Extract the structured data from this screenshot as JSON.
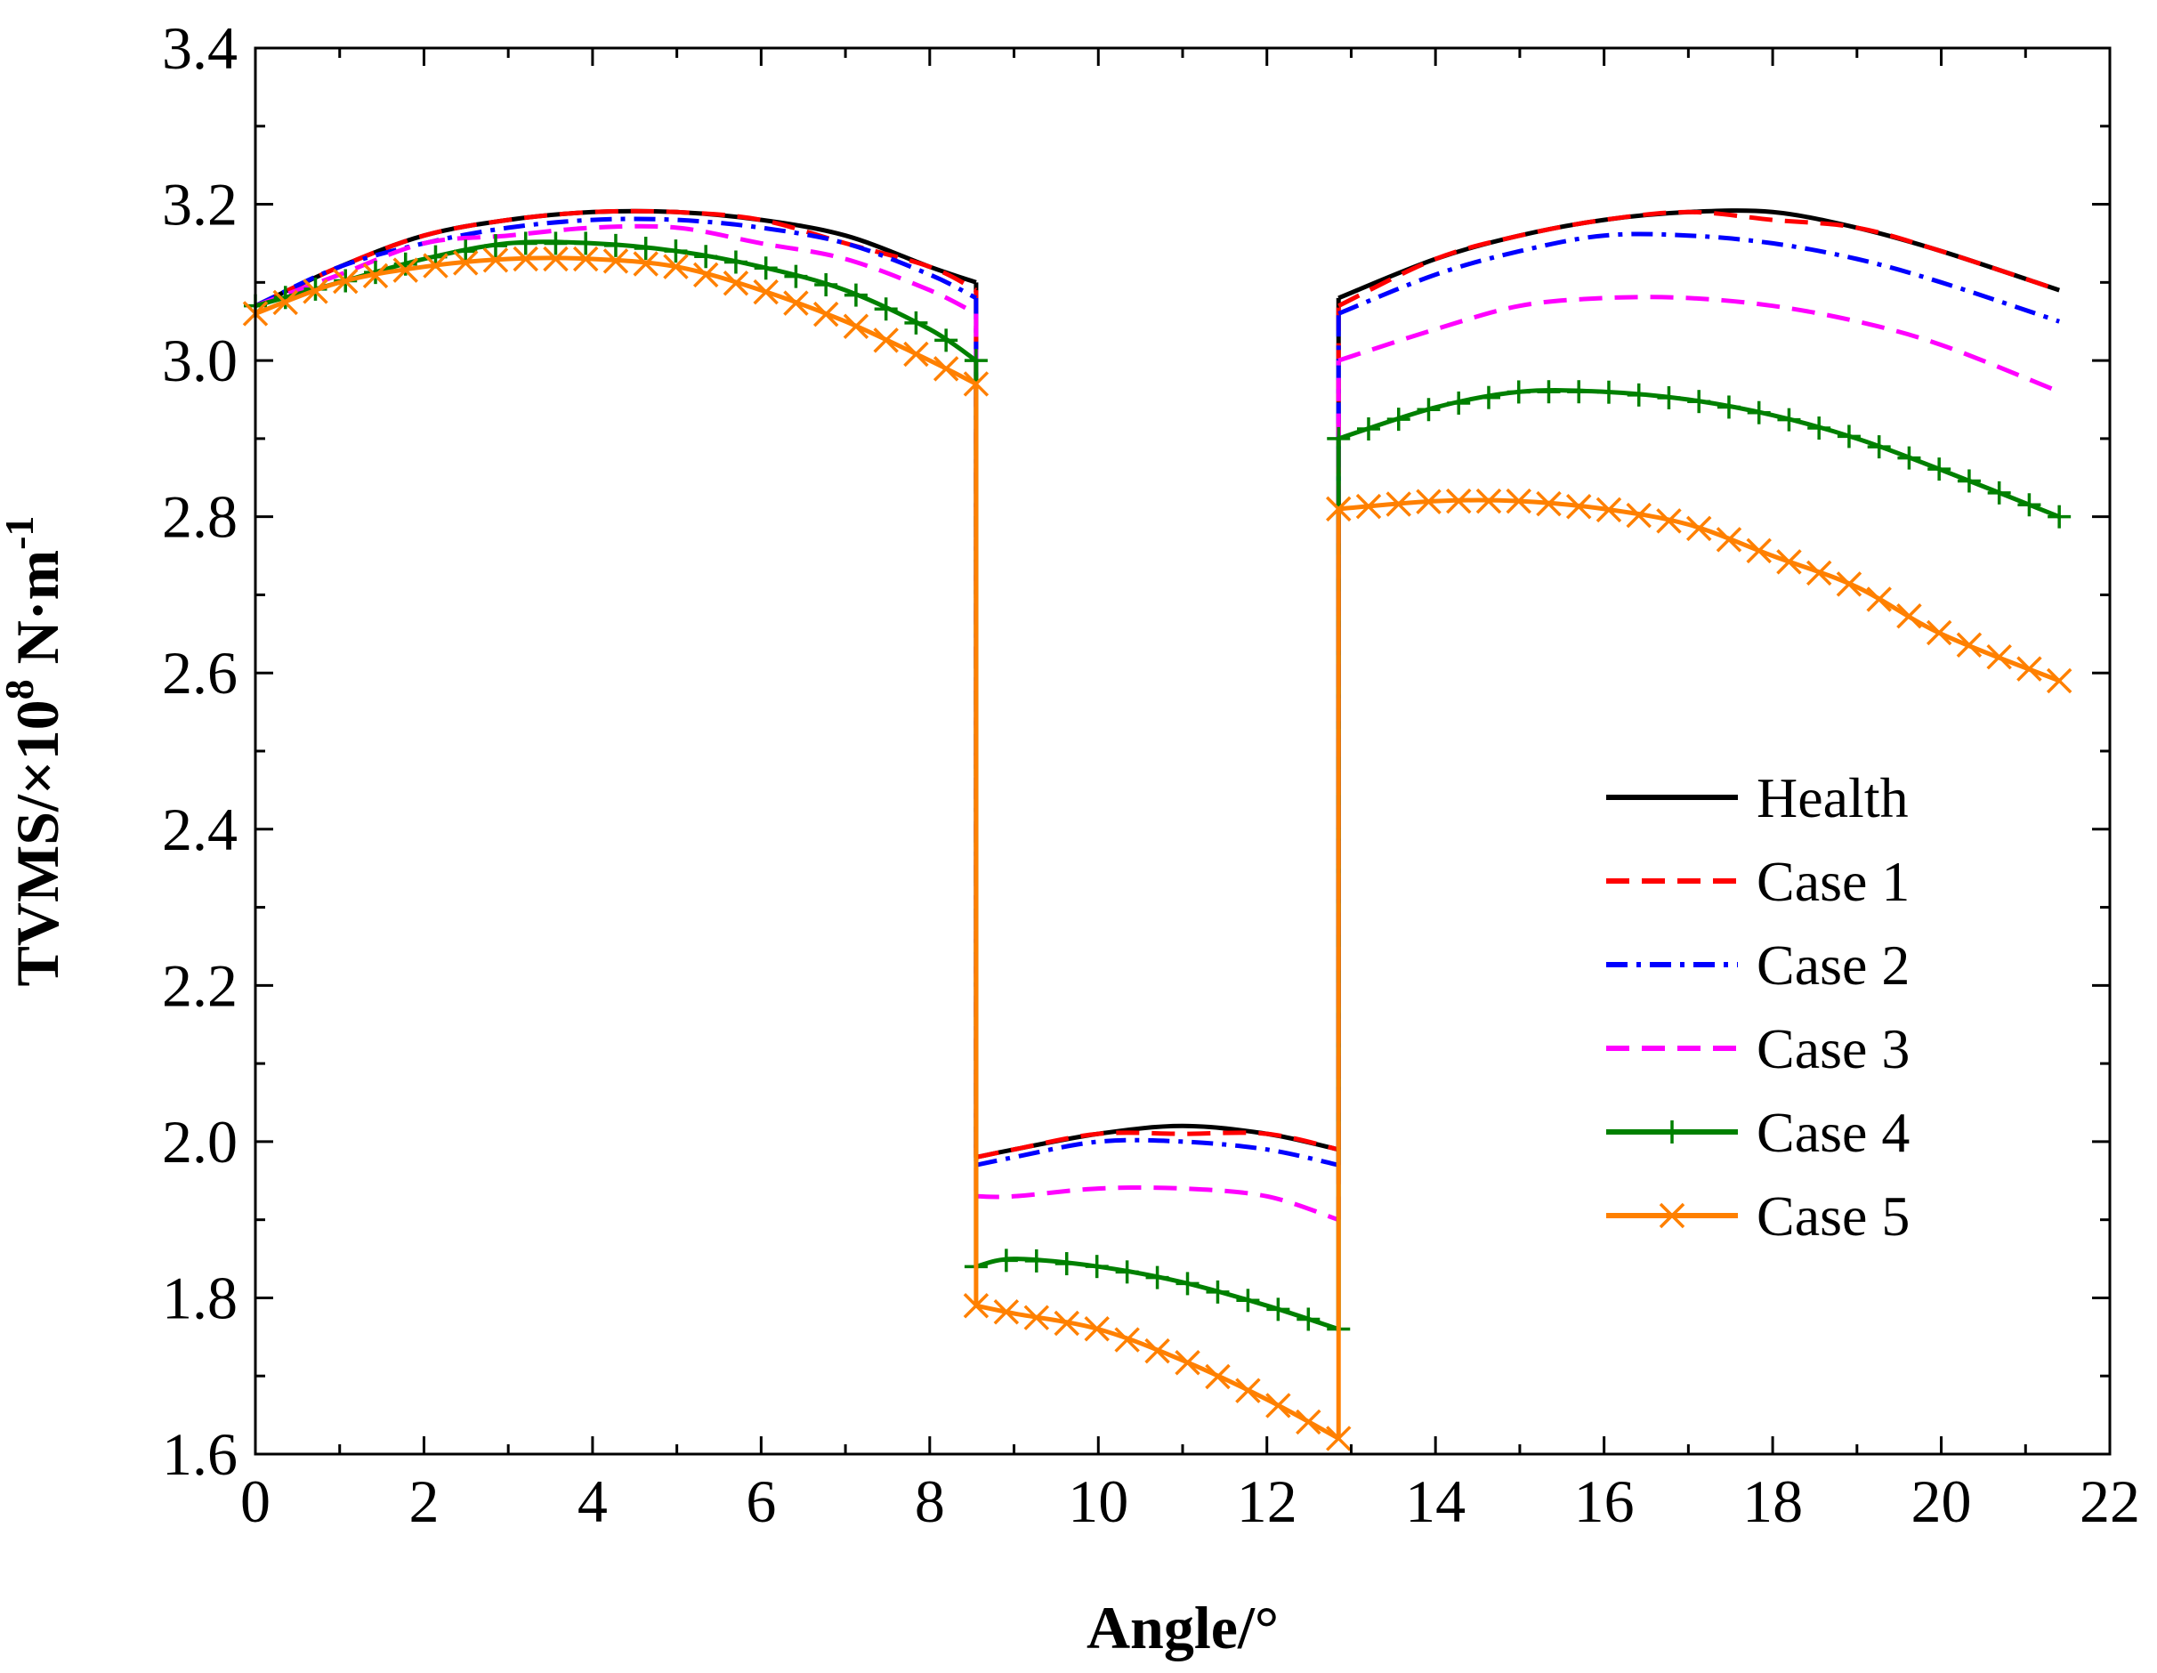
{
  "chart_data": {
    "type": "line",
    "title": "",
    "xlabel": "Angle/°",
    "ylabel": "TVMS/×10⁸ N·m⁻¹",
    "ylabel_parts": {
      "base": "TVMS/×10",
      "exp1": "8",
      "mid": " N·m",
      "exp2": "-1"
    },
    "xlim": [
      0,
      22
    ],
    "ylim": [
      1.6,
      3.4
    ],
    "x_ticks": [
      0,
      2,
      4,
      6,
      8,
      10,
      12,
      14,
      16,
      18,
      20,
      22
    ],
    "y_ticks": [
      1.6,
      1.8,
      2.0,
      2.2,
      2.4,
      2.6,
      2.8,
      3.0,
      3.2,
      3.4
    ],
    "x_tick_labels": [
      "0",
      "2",
      "4",
      "6",
      "8",
      "10",
      "12",
      "14",
      "16",
      "18",
      "20",
      "22"
    ],
    "y_tick_labels": [
      "1.6",
      "1.8",
      "2.0",
      "2.2",
      "2.4",
      "2.6",
      "2.8",
      "3.0",
      "3.2",
      "3.4"
    ],
    "legend_position": "right",
    "grid": false,
    "segment_bounds": [
      [
        0,
        8.55
      ],
      [
        8.55,
        12.85
      ],
      [
        12.85,
        21.4
      ]
    ],
    "series": [
      {
        "name": "Health",
        "color": "#000000",
        "dash": "solid",
        "marker": "none",
        "segments": [
          [
            [
              0,
              3.07
            ],
            [
              1,
              3.12
            ],
            [
              2,
              3.16
            ],
            [
              3,
              3.18
            ],
            [
              4,
              3.19
            ],
            [
              5,
              3.19
            ],
            [
              6,
              3.18
            ],
            [
              7,
              3.16
            ],
            [
              8,
              3.12
            ],
            [
              8.55,
              3.1
            ]
          ],
          [
            [
              8.55,
              1.98
            ],
            [
              9,
              1.99
            ],
            [
              10,
              2.01
            ],
            [
              11,
              2.02
            ],
            [
              12,
              2.01
            ],
            [
              12.85,
              1.99
            ]
          ],
          [
            [
              12.85,
              3.08
            ],
            [
              14,
              3.13
            ],
            [
              15,
              3.16
            ],
            [
              16,
              3.18
            ],
            [
              17,
              3.19
            ],
            [
              18,
              3.19
            ],
            [
              19,
              3.17
            ],
            [
              20,
              3.14
            ],
            [
              21.4,
              3.09
            ]
          ]
        ]
      },
      {
        "name": "Case 1",
        "color": "#ff0000",
        "dash": "dash",
        "marker": "none",
        "segments": [
          [
            [
              0,
              3.07
            ],
            [
              1,
              3.12
            ],
            [
              2,
              3.16
            ],
            [
              3,
              3.18
            ],
            [
              4,
              3.19
            ],
            [
              5,
              3.19
            ],
            [
              6,
              3.18
            ],
            [
              7,
              3.15
            ],
            [
              8,
              3.12
            ],
            [
              8.55,
              3.09
            ]
          ],
          [
            [
              8.55,
              1.98
            ],
            [
              9,
              1.99
            ],
            [
              10,
              2.01
            ],
            [
              11,
              2.01
            ],
            [
              12,
              2.01
            ],
            [
              12.85,
              1.99
            ]
          ],
          [
            [
              12.85,
              3.07
            ],
            [
              14,
              3.13
            ],
            [
              15,
              3.16
            ],
            [
              16,
              3.18
            ],
            [
              17,
              3.19
            ],
            [
              18,
              3.18
            ],
            [
              19,
              3.17
            ],
            [
              20,
              3.14
            ],
            [
              21.4,
              3.09
            ]
          ]
        ]
      },
      {
        "name": "Case 2",
        "color": "#0000ff",
        "dash": "dashdot",
        "marker": "none",
        "segments": [
          [
            [
              0,
              3.07
            ],
            [
              1,
              3.12
            ],
            [
              2,
              3.15
            ],
            [
              3,
              3.17
            ],
            [
              4,
              3.18
            ],
            [
              5,
              3.18
            ],
            [
              6,
              3.17
            ],
            [
              7,
              3.15
            ],
            [
              8,
              3.11
            ],
            [
              8.55,
              3.08
            ]
          ],
          [
            [
              8.55,
              1.97
            ],
            [
              9,
              1.98
            ],
            [
              10,
              2.0
            ],
            [
              11,
              2.0
            ],
            [
              12,
              1.99
            ],
            [
              12.85,
              1.97
            ]
          ],
          [
            [
              12.85,
              3.06
            ],
            [
              14,
              3.11
            ],
            [
              15,
              3.14
            ],
            [
              16,
              3.16
            ],
            [
              17,
              3.16
            ],
            [
              18,
              3.15
            ],
            [
              19,
              3.13
            ],
            [
              20,
              3.1
            ],
            [
              21.4,
              3.05
            ]
          ]
        ]
      },
      {
        "name": "Case 3",
        "color": "#ff00ff",
        "dash": "dash",
        "marker": "none",
        "segments": [
          [
            [
              0,
              3.07
            ],
            [
              1,
              3.11
            ],
            [
              2,
              3.15
            ],
            [
              3,
              3.16
            ],
            [
              4,
              3.17
            ],
            [
              5,
              3.17
            ],
            [
              6,
              3.15
            ],
            [
              7,
              3.13
            ],
            [
              8,
              3.09
            ],
            [
              8.55,
              3.06
            ]
          ],
          [
            [
              8.55,
              1.93
            ],
            [
              9,
              1.93
            ],
            [
              10,
              1.94
            ],
            [
              11,
              1.94
            ],
            [
              12,
              1.93
            ],
            [
              12.85,
              1.9
            ]
          ],
          [
            [
              12.85,
              3.0
            ],
            [
              14,
              3.04
            ],
            [
              15,
              3.07
            ],
            [
              16,
              3.08
            ],
            [
              17,
              3.08
            ],
            [
              18,
              3.07
            ],
            [
              19,
              3.05
            ],
            [
              20,
              3.02
            ],
            [
              21.4,
              2.96
            ]
          ]
        ]
      },
      {
        "name": "Case 4",
        "color": "#008000",
        "dash": "solid",
        "marker": "plus",
        "segments": [
          [
            [
              0,
              3.07
            ],
            [
              1,
              3.1
            ],
            [
              2,
              3.13
            ],
            [
              3,
              3.15
            ],
            [
              4,
              3.15
            ],
            [
              5,
              3.14
            ],
            [
              6,
              3.12
            ],
            [
              7,
              3.09
            ],
            [
              8,
              3.04
            ],
            [
              8.55,
              3.0
            ]
          ],
          [
            [
              8.55,
              1.84
            ],
            [
              9,
              1.85
            ],
            [
              10,
              1.84
            ],
            [
              11,
              1.82
            ],
            [
              12,
              1.79
            ],
            [
              12.85,
              1.76
            ]
          ],
          [
            [
              12.85,
              2.9
            ],
            [
              14,
              2.94
            ],
            [
              15,
              2.96
            ],
            [
              16,
              2.96
            ],
            [
              17,
              2.95
            ],
            [
              18,
              2.93
            ],
            [
              19,
              2.9
            ],
            [
              20,
              2.86
            ],
            [
              21.4,
              2.8
            ]
          ]
        ]
      },
      {
        "name": "Case 5",
        "color": "#ff8000",
        "dash": "solid",
        "marker": "x",
        "segments": [
          [
            [
              0,
              3.06
            ],
            [
              1,
              3.1
            ],
            [
              2,
              3.12
            ],
            [
              3,
              3.13
            ],
            [
              4,
              3.13
            ],
            [
              5,
              3.12
            ],
            [
              6,
              3.09
            ],
            [
              7,
              3.05
            ],
            [
              8,
              3.0
            ],
            [
              8.55,
              2.97
            ]
          ],
          [
            [
              8.55,
              1.79
            ],
            [
              9,
              1.78
            ],
            [
              10,
              1.76
            ],
            [
              11,
              1.72
            ],
            [
              12,
              1.67
            ],
            [
              12.85,
              1.62
            ]
          ],
          [
            [
              12.85,
              2.81
            ],
            [
              14,
              2.82
            ],
            [
              15,
              2.82
            ],
            [
              16,
              2.81
            ],
            [
              17,
              2.79
            ],
            [
              18,
              2.75
            ],
            [
              19,
              2.71
            ],
            [
              20,
              2.65
            ],
            [
              21.4,
              2.59
            ]
          ]
        ]
      }
    ]
  }
}
